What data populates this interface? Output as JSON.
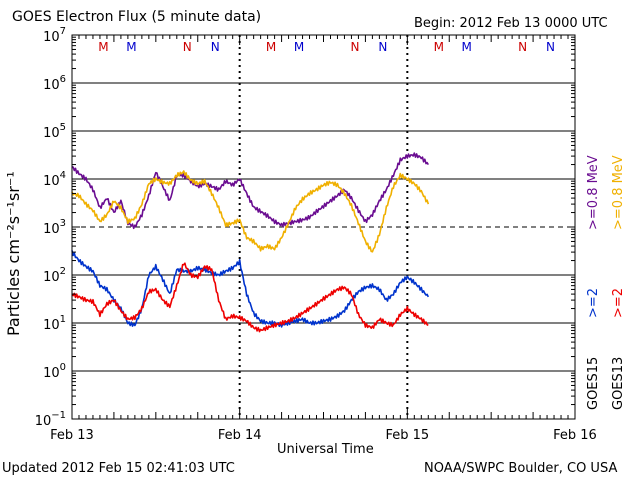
{
  "header": {
    "title": "GOES Electron Flux (5 minute data)",
    "begin": "Begin: 2012 Feb 13 0000 UTC"
  },
  "footer": {
    "updated": "Updated 2012 Feb 15 02:41:03 UTC",
    "credit": "NOAA/SWPC Boulder, CO USA"
  },
  "colors": {
    "goes15_2mev": "#0033cc",
    "goes13_2mev": "#ee0000",
    "goes15_08mev": "#6a0d91",
    "goes13_08mev": "#f0b000",
    "marker_m": "#cc0000",
    "marker_n_red": "#cc0000",
    "marker_n_blue": "#0000cc"
  },
  "chart_data": {
    "type": "line",
    "title": "GOES Electron Flux (5 minute data)",
    "xlabel": "Universal Time",
    "ylabel": "Particles cm⁻²s⁻¹sr⁻¹",
    "y_scale": "log",
    "ylim": [
      0.1,
      10000000
    ],
    "y_ticks": [
      {
        "value": 10000000,
        "base": "10",
        "exp": "7"
      },
      {
        "value": 1000000,
        "base": "10",
        "exp": "6"
      },
      {
        "value": 100000,
        "base": "10",
        "exp": "5"
      },
      {
        "value": 10000,
        "base": "10",
        "exp": "4"
      },
      {
        "value": 1000,
        "base": "10",
        "exp": "3"
      },
      {
        "value": 100,
        "base": "10",
        "exp": "2"
      },
      {
        "value": 10,
        "base": "10",
        "exp": "1"
      },
      {
        "value": 1,
        "base": "10",
        "exp": "0"
      },
      {
        "value": 0.1,
        "base": "10",
        "exp": "−1"
      }
    ],
    "xlim": [
      0,
      72
    ],
    "x_unit": "hours since 2012 Feb 13 0000 UTC",
    "x_ticks": [
      {
        "value": 0,
        "label": "Feb 13"
      },
      {
        "value": 24,
        "label": "Feb 14"
      },
      {
        "value": 48,
        "label": "Feb 15"
      },
      {
        "value": 72,
        "label": "Feb 16"
      }
    ],
    "day_boundaries": [
      24,
      48
    ],
    "threshold_dashed": [
      1000
    ],
    "markers": [
      {
        "x": 4.5,
        "label": "M",
        "color": "#cc0000"
      },
      {
        "x": 8.5,
        "label": "M",
        "color": "#0000cc"
      },
      {
        "x": 16.5,
        "label": "N",
        "color": "#cc0000"
      },
      {
        "x": 20.5,
        "label": "N",
        "color": "#0000cc"
      },
      {
        "x": 28.5,
        "label": "M",
        "color": "#cc0000"
      },
      {
        "x": 32.5,
        "label": "M",
        "color": "#0000cc"
      },
      {
        "x": 40.5,
        "label": "N",
        "color": "#cc0000"
      },
      {
        "x": 44.5,
        "label": "N",
        "color": "#0000cc"
      },
      {
        "x": 52.5,
        "label": "M",
        "color": "#cc0000"
      },
      {
        "x": 56.5,
        "label": "M",
        "color": "#0000cc"
      },
      {
        "x": 64.5,
        "label": "N",
        "color": "#cc0000"
      },
      {
        "x": 68.5,
        "label": "N",
        "color": "#0000cc"
      }
    ],
    "series": [
      {
        "name": "GOES15 >=0.8 MeV",
        "color": "#6a0d91",
        "x": [
          0,
          1,
          2,
          3,
          4,
          5,
          6,
          7,
          8,
          9,
          10,
          11,
          12,
          13,
          14,
          15,
          16,
          17,
          18,
          19,
          20,
          21,
          22,
          23,
          24,
          25,
          26,
          27,
          28,
          29,
          30,
          31,
          32,
          33,
          34,
          35,
          36,
          37,
          38,
          39,
          40,
          41,
          42,
          43,
          44,
          45,
          46,
          47,
          48,
          49,
          50,
          51
        ],
        "y": [
          18000,
          13000,
          10000,
          6000,
          2500,
          4000,
          2000,
          3500,
          1200,
          1000,
          1800,
          4500,
          14000,
          7000,
          3500,
          12000,
          12000,
          9000,
          7000,
          8000,
          7000,
          6000,
          9000,
          7500,
          10000,
          5000,
          2600,
          2100,
          1700,
          1300,
          1100,
          1200,
          1300,
          1400,
          1600,
          2100,
          2700,
          3500,
          4500,
          6000,
          4000,
          2200,
          1300,
          1800,
          3500,
          6000,
          12000,
          25000,
          30000,
          32000,
          28000,
          20000
        ]
      },
      {
        "name": "GOES13 >=0.8 MeV",
        "color": "#f0b000",
        "x": [
          0,
          1,
          2,
          3,
          4,
          5,
          6,
          7,
          8,
          9,
          10,
          11,
          12,
          13,
          14,
          15,
          16,
          17,
          18,
          19,
          20,
          21,
          22,
          23,
          24,
          25,
          26,
          27,
          28,
          29,
          30,
          31,
          32,
          33,
          34,
          35,
          36,
          37,
          38,
          39,
          40,
          41,
          42,
          43,
          44,
          45,
          46,
          47,
          48,
          49,
          50,
          51
        ],
        "y": [
          5000,
          4500,
          3000,
          2200,
          1300,
          1800,
          3500,
          2500,
          1300,
          1500,
          3000,
          8000,
          10000,
          8500,
          8000,
          12000,
          14000,
          9500,
          8000,
          9000,
          5000,
          2500,
          1100,
          1200,
          1400,
          600,
          500,
          350,
          400,
          350,
          600,
          1200,
          2500,
          3800,
          5000,
          6000,
          7500,
          8500,
          7500,
          5000,
          2800,
          1200,
          500,
          300,
          700,
          2500,
          7000,
          12000,
          10000,
          8000,
          5500,
          3000
        ]
      },
      {
        "name": "GOES15 >=2 MeV",
        "color": "#0033cc",
        "x": [
          0,
          1,
          2,
          3,
          4,
          5,
          6,
          7,
          8,
          9,
          10,
          11,
          12,
          13,
          14,
          15,
          16,
          17,
          18,
          19,
          20,
          21,
          22,
          23,
          24,
          25,
          26,
          27,
          28,
          29,
          30,
          31,
          32,
          33,
          34,
          35,
          36,
          37,
          38,
          39,
          40,
          41,
          42,
          43,
          44,
          45,
          46,
          47,
          48,
          49,
          50,
          51
        ],
        "y": [
          300,
          200,
          150,
          120,
          60,
          50,
          30,
          20,
          10,
          9,
          20,
          100,
          150,
          80,
          40,
          130,
          120,
          120,
          140,
          130,
          110,
          100,
          120,
          140,
          190,
          40,
          16,
          11,
          10,
          10,
          9,
          10,
          11,
          12,
          10,
          10,
          11,
          12,
          14,
          18,
          30,
          45,
          55,
          60,
          50,
          30,
          40,
          70,
          90,
          70,
          50,
          35
        ]
      },
      {
        "name": "GOES13 >=2 MeV",
        "color": "#ee0000",
        "x": [
          0,
          1,
          2,
          3,
          4,
          5,
          6,
          7,
          8,
          9,
          10,
          11,
          12,
          13,
          14,
          15,
          16,
          17,
          18,
          19,
          20,
          21,
          22,
          23,
          24,
          25,
          26,
          27,
          28,
          29,
          30,
          31,
          32,
          33,
          34,
          35,
          36,
          37,
          38,
          39,
          40,
          41,
          42,
          43,
          44,
          45,
          46,
          47,
          48,
          49,
          50,
          51
        ],
        "y": [
          40,
          35,
          30,
          28,
          15,
          25,
          30,
          18,
          12,
          13,
          20,
          45,
          50,
          30,
          22,
          60,
          180,
          100,
          90,
          150,
          130,
          30,
          12,
          14,
          13,
          11,
          8,
          7,
          8,
          9,
          10,
          11,
          13,
          16,
          20,
          25,
          32,
          40,
          50,
          55,
          40,
          15,
          9,
          8,
          12,
          10,
          9,
          15,
          20,
          15,
          12,
          9
        ]
      }
    ],
    "legend": {
      "placement": "right",
      "groups": [
        {
          "satellite": "GOES15",
          "items": [
            {
              "text": ">=2",
              "color": "#0033cc"
            },
            {
              "text": ">=0.8 MeV",
              "color": "#6a0d91"
            }
          ]
        },
        {
          "satellite": "GOES13",
          "items": [
            {
              "text": ">=2",
              "color": "#ee0000"
            },
            {
              "text": ">=0.8 MeV",
              "color": "#f0b000"
            }
          ]
        }
      ]
    }
  }
}
